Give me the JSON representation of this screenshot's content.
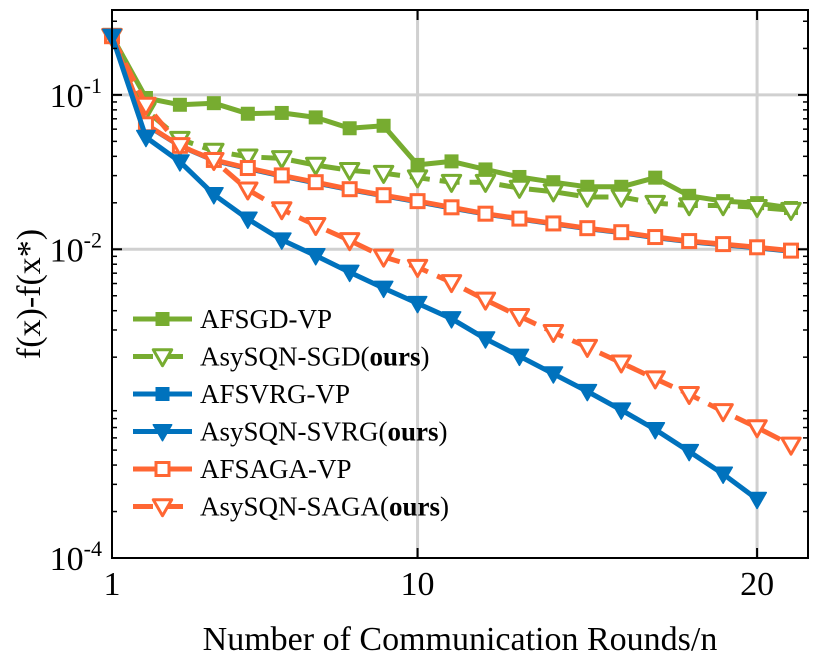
{
  "chart_data": {
    "type": "line",
    "title": "",
    "xlabel": "Number of Communication Rounds/n",
    "ylabel": "f(x)-f(x*)",
    "xlim": [
      1,
      21.5
    ],
    "ylim_log10": [
      -4,
      -0.45
    ],
    "grid": true,
    "xticks": [
      {
        "value": 1,
        "label": "1"
      },
      {
        "value": 10,
        "label": "10"
      },
      {
        "value": 20,
        "label": "20"
      }
    ],
    "yticks": [
      {
        "exp": -1,
        "base": "10",
        "sup": "-1"
      },
      {
        "exp": -2,
        "base": "10",
        "sup": "-2"
      },
      {
        "exp": -4,
        "base": "10",
        "sup": "-4"
      }
    ],
    "legend_position": "bottom-left",
    "series": [
      {
        "name": "AFSGD-VP",
        "suffix": "",
        "color": "#77ac30",
        "dashed": false,
        "marker": "square-filled",
        "x": [
          1,
          2,
          3,
          4,
          5,
          6,
          7,
          8,
          9,
          10,
          11,
          12,
          13,
          14,
          15,
          16,
          17,
          18,
          19,
          20,
          21
        ],
        "y": [
          0.24,
          0.0955,
          0.0863,
          0.0884,
          0.0755,
          0.0764,
          0.0715,
          0.0608,
          0.0631,
          0.0352,
          0.0371,
          0.0329,
          0.0294,
          0.0272,
          0.0254,
          0.0254,
          0.0291,
          0.0222,
          0.0205,
          0.0199,
          0.0185
        ]
      },
      {
        "name": "AsySQN-SGD(",
        "suffix": "ours",
        "color": "#77ac30",
        "dashed": true,
        "marker": "triangle-down-open",
        "x": [
          1,
          2,
          3,
          4,
          5,
          6,
          7,
          8,
          9,
          10,
          11,
          12,
          13,
          14,
          15,
          16,
          17,
          18,
          19,
          20,
          21
        ],
        "y": [
          0.24,
          0.0795,
          0.0517,
          0.0433,
          0.0397,
          0.0388,
          0.0351,
          0.0325,
          0.0311,
          0.0291,
          0.0272,
          0.0272,
          0.0249,
          0.0236,
          0.0218,
          0.0218,
          0.0199,
          0.0192,
          0.0192,
          0.0187,
          0.0179
        ]
      },
      {
        "name": "AFSVRG-VP",
        "suffix": "",
        "color": "#0072bd",
        "dashed": false,
        "marker": "square-filled",
        "x": [
          1,
          2,
          3,
          4,
          5,
          6,
          7,
          8,
          9,
          10,
          11,
          12,
          13,
          14,
          15,
          16,
          17,
          18,
          19,
          20,
          21
        ],
        "y": [
          0.24,
          0.064,
          0.0467,
          0.0376,
          0.0333,
          0.0298,
          0.0269,
          0.0243,
          0.0222,
          0.0203,
          0.0185,
          0.0169,
          0.0157,
          0.0146,
          0.0136,
          0.0128,
          0.0119,
          0.0112,
          0.0107,
          0.0102,
          0.0097
        ]
      },
      {
        "name": "AsySQN-SVRG(",
        "suffix": "ours",
        "color": "#0072bd",
        "dashed": false,
        "marker": "triangle-down-filled",
        "x": [
          1,
          2,
          3,
          4,
          5,
          6,
          7,
          8,
          9,
          10,
          11,
          12,
          13,
          14,
          15,
          16,
          17,
          18,
          19,
          20
        ],
        "y": [
          0.24,
          0.0531,
          0.0369,
          0.0226,
          0.0157,
          0.0115,
          0.0091,
          0.0071,
          0.0056,
          0.00446,
          0.00355,
          0.00263,
          0.00203,
          0.00156,
          0.0012,
          0.00091,
          0.00068,
          0.00049,
          0.00035,
          0.00024
        ]
      },
      {
        "name": "AFSAGA-VP",
        "suffix": "",
        "color": "#ff6633",
        "dashed": false,
        "marker": "square-open",
        "x": [
          1,
          2,
          3,
          4,
          5,
          6,
          7,
          8,
          9,
          10,
          11,
          12,
          13,
          14,
          15,
          16,
          17,
          18,
          19,
          20,
          21
        ],
        "y": [
          0.24,
          0.0645,
          0.0468,
          0.0379,
          0.0336,
          0.0301,
          0.0272,
          0.0245,
          0.0224,
          0.0205,
          0.0187,
          0.017,
          0.0158,
          0.0147,
          0.0137,
          0.0129,
          0.012,
          0.0113,
          0.0108,
          0.0103,
          0.0098
        ]
      },
      {
        "name": "AsySQN-SAGA(",
        "suffix": "ours",
        "color": "#ff6633",
        "dashed": true,
        "marker": "triangle-down-open",
        "x": [
          1,
          2,
          3,
          4,
          5,
          6,
          7,
          8,
          9,
          10,
          11,
          12,
          13,
          14,
          15,
          16,
          17,
          18,
          19,
          20,
          21
        ],
        "y": [
          0.24,
          0.086,
          0.0471,
          0.0377,
          0.0243,
          0.0181,
          0.0143,
          0.0114,
          0.00892,
          0.00765,
          0.0061,
          0.0047,
          0.00368,
          0.0029,
          0.00232,
          0.00184,
          0.00145,
          0.00115,
          0.00089,
          0.0007,
          0.00054
        ]
      }
    ]
  }
}
